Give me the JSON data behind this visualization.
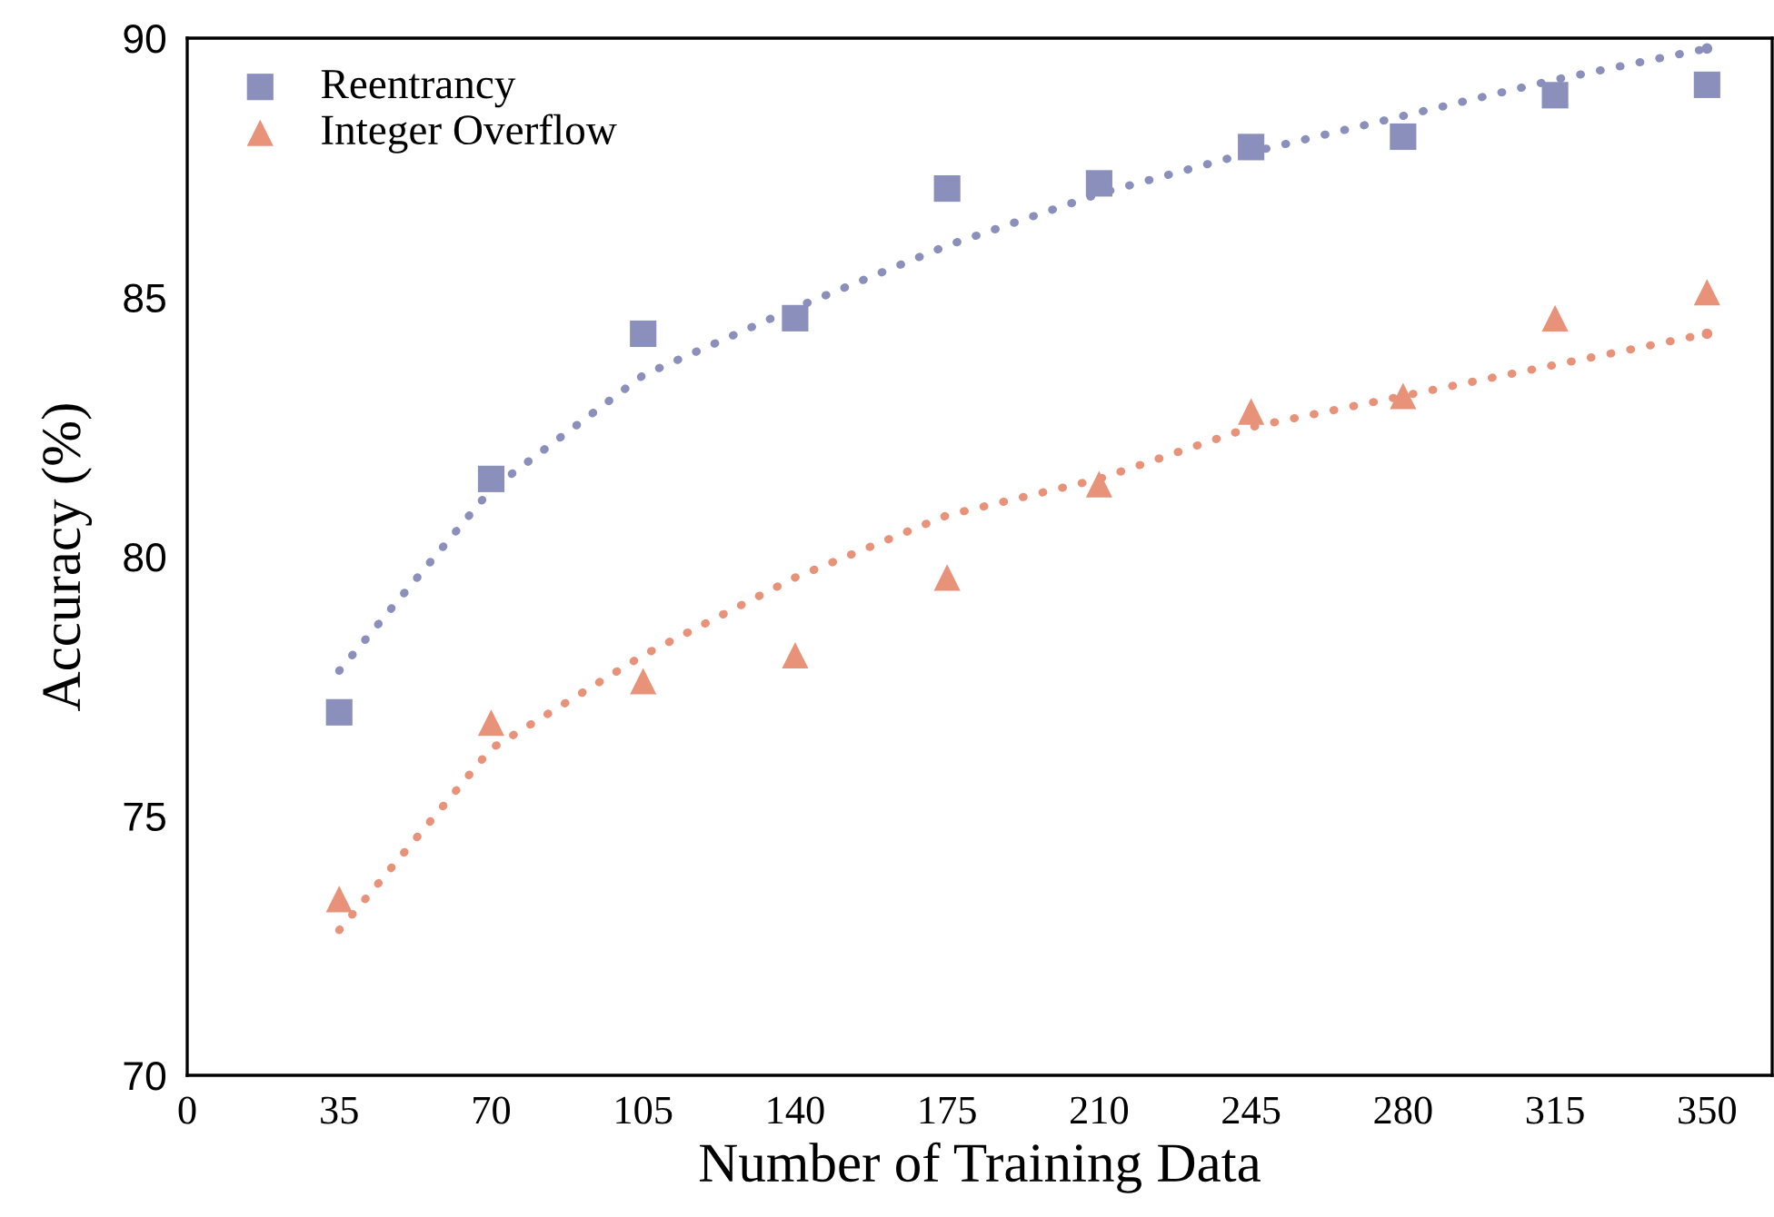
{
  "chart_data": {
    "type": "scatter",
    "xlabel": "Number of Training Data",
    "ylabel": "Accuracy (%)",
    "x": [
      35,
      70,
      105,
      140,
      175,
      210,
      245,
      280,
      315,
      350
    ],
    "series": [
      {
        "name": "Reentrancy",
        "color": "#8b8fbb",
        "marker": "square",
        "values": [
          77.0,
          81.5,
          84.3,
          84.6,
          87.1,
          87.2,
          87.9,
          88.1,
          88.9,
          89.1
        ]
      },
      {
        "name": "Integer Overflow",
        "color": "#e8927a",
        "marker": "triangle",
        "values": [
          73.4,
          76.8,
          77.6,
          78.1,
          79.6,
          81.4,
          82.8,
          83.1,
          84.6,
          85.1
        ]
      },
      {
        "type": "line",
        "color": "#8b8fbb",
        "marker": "none",
        "line_style": "dotted",
        "x": [
          35,
          70,
          105,
          140,
          175,
          210,
          245,
          280,
          315,
          350
        ],
        "values": [
          77.8,
          81.3,
          83.5,
          84.8,
          86.0,
          87.0,
          87.8,
          88.5,
          89.2,
          89.8
        ]
      },
      {
        "type": "line",
        "color": "#e8927a",
        "marker": "none",
        "line_style": "dotted",
        "x": [
          35,
          70,
          105,
          140,
          175,
          210,
          245,
          280,
          315,
          350
        ],
        "values": [
          72.8,
          76.3,
          78.1,
          79.6,
          80.8,
          81.5,
          82.5,
          83.1,
          83.7,
          84.3
        ]
      }
    ],
    "xlim": [
      0,
      365
    ],
    "xticks": [
      0,
      35,
      70,
      105,
      140,
      175,
      210,
      245,
      280,
      315,
      350
    ],
    "ylim": [
      70,
      90
    ],
    "yticks": [
      70,
      75,
      80,
      85,
      90
    ],
    "grid": false,
    "legend": "top left"
  }
}
